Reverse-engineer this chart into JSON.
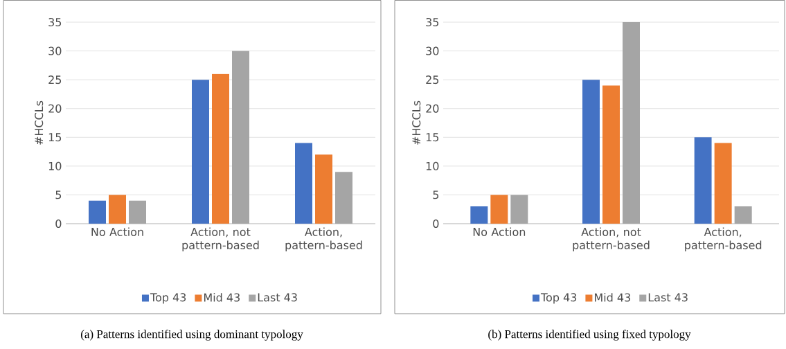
{
  "chart_data": [
    {
      "type": "bar",
      "ylabel": "#HCCLs",
      "categories": [
        "No Action",
        "Action, not pattern-based",
        "Action, pattern-based"
      ],
      "series": [
        {
          "name": "Top 43",
          "color": "#4472c4",
          "values": [
            4,
            25,
            14
          ]
        },
        {
          "name": "Mid 43",
          "color": "#ed7d31",
          "values": [
            5,
            26,
            12
          ]
        },
        {
          "name": "Last 43",
          "color": "#a5a5a5",
          "values": [
            4,
            30,
            9
          ]
        }
      ],
      "ylim": [
        0,
        35
      ],
      "yticks": [
        0,
        5,
        10,
        15,
        20,
        25,
        30,
        35
      ],
      "grid": "y",
      "legend": "bottom",
      "annotations": [
        "(a) Patterns identified using dominant typology"
      ]
    },
    {
      "type": "bar",
      "ylabel": "#HCCLs",
      "categories": [
        "No Action",
        "Action, not pattern-based",
        "Action, pattern-based"
      ],
      "series": [
        {
          "name": "Top 43",
          "color": "#4472c4",
          "values": [
            3,
            25,
            15
          ]
        },
        {
          "name": "Mid 43",
          "color": "#ed7d31",
          "values": [
            5,
            24,
            14
          ]
        },
        {
          "name": "Last 43",
          "color": "#a5a5a5",
          "values": [
            5,
            35,
            3
          ]
        }
      ],
      "ylim": [
        0,
        35
      ],
      "yticks": [
        0,
        5,
        10,
        15,
        20,
        25,
        30,
        35
      ],
      "grid": "y",
      "legend": "bottom",
      "annotations": [
        "(b) Patterns identified using fixed typology"
      ]
    }
  ]
}
